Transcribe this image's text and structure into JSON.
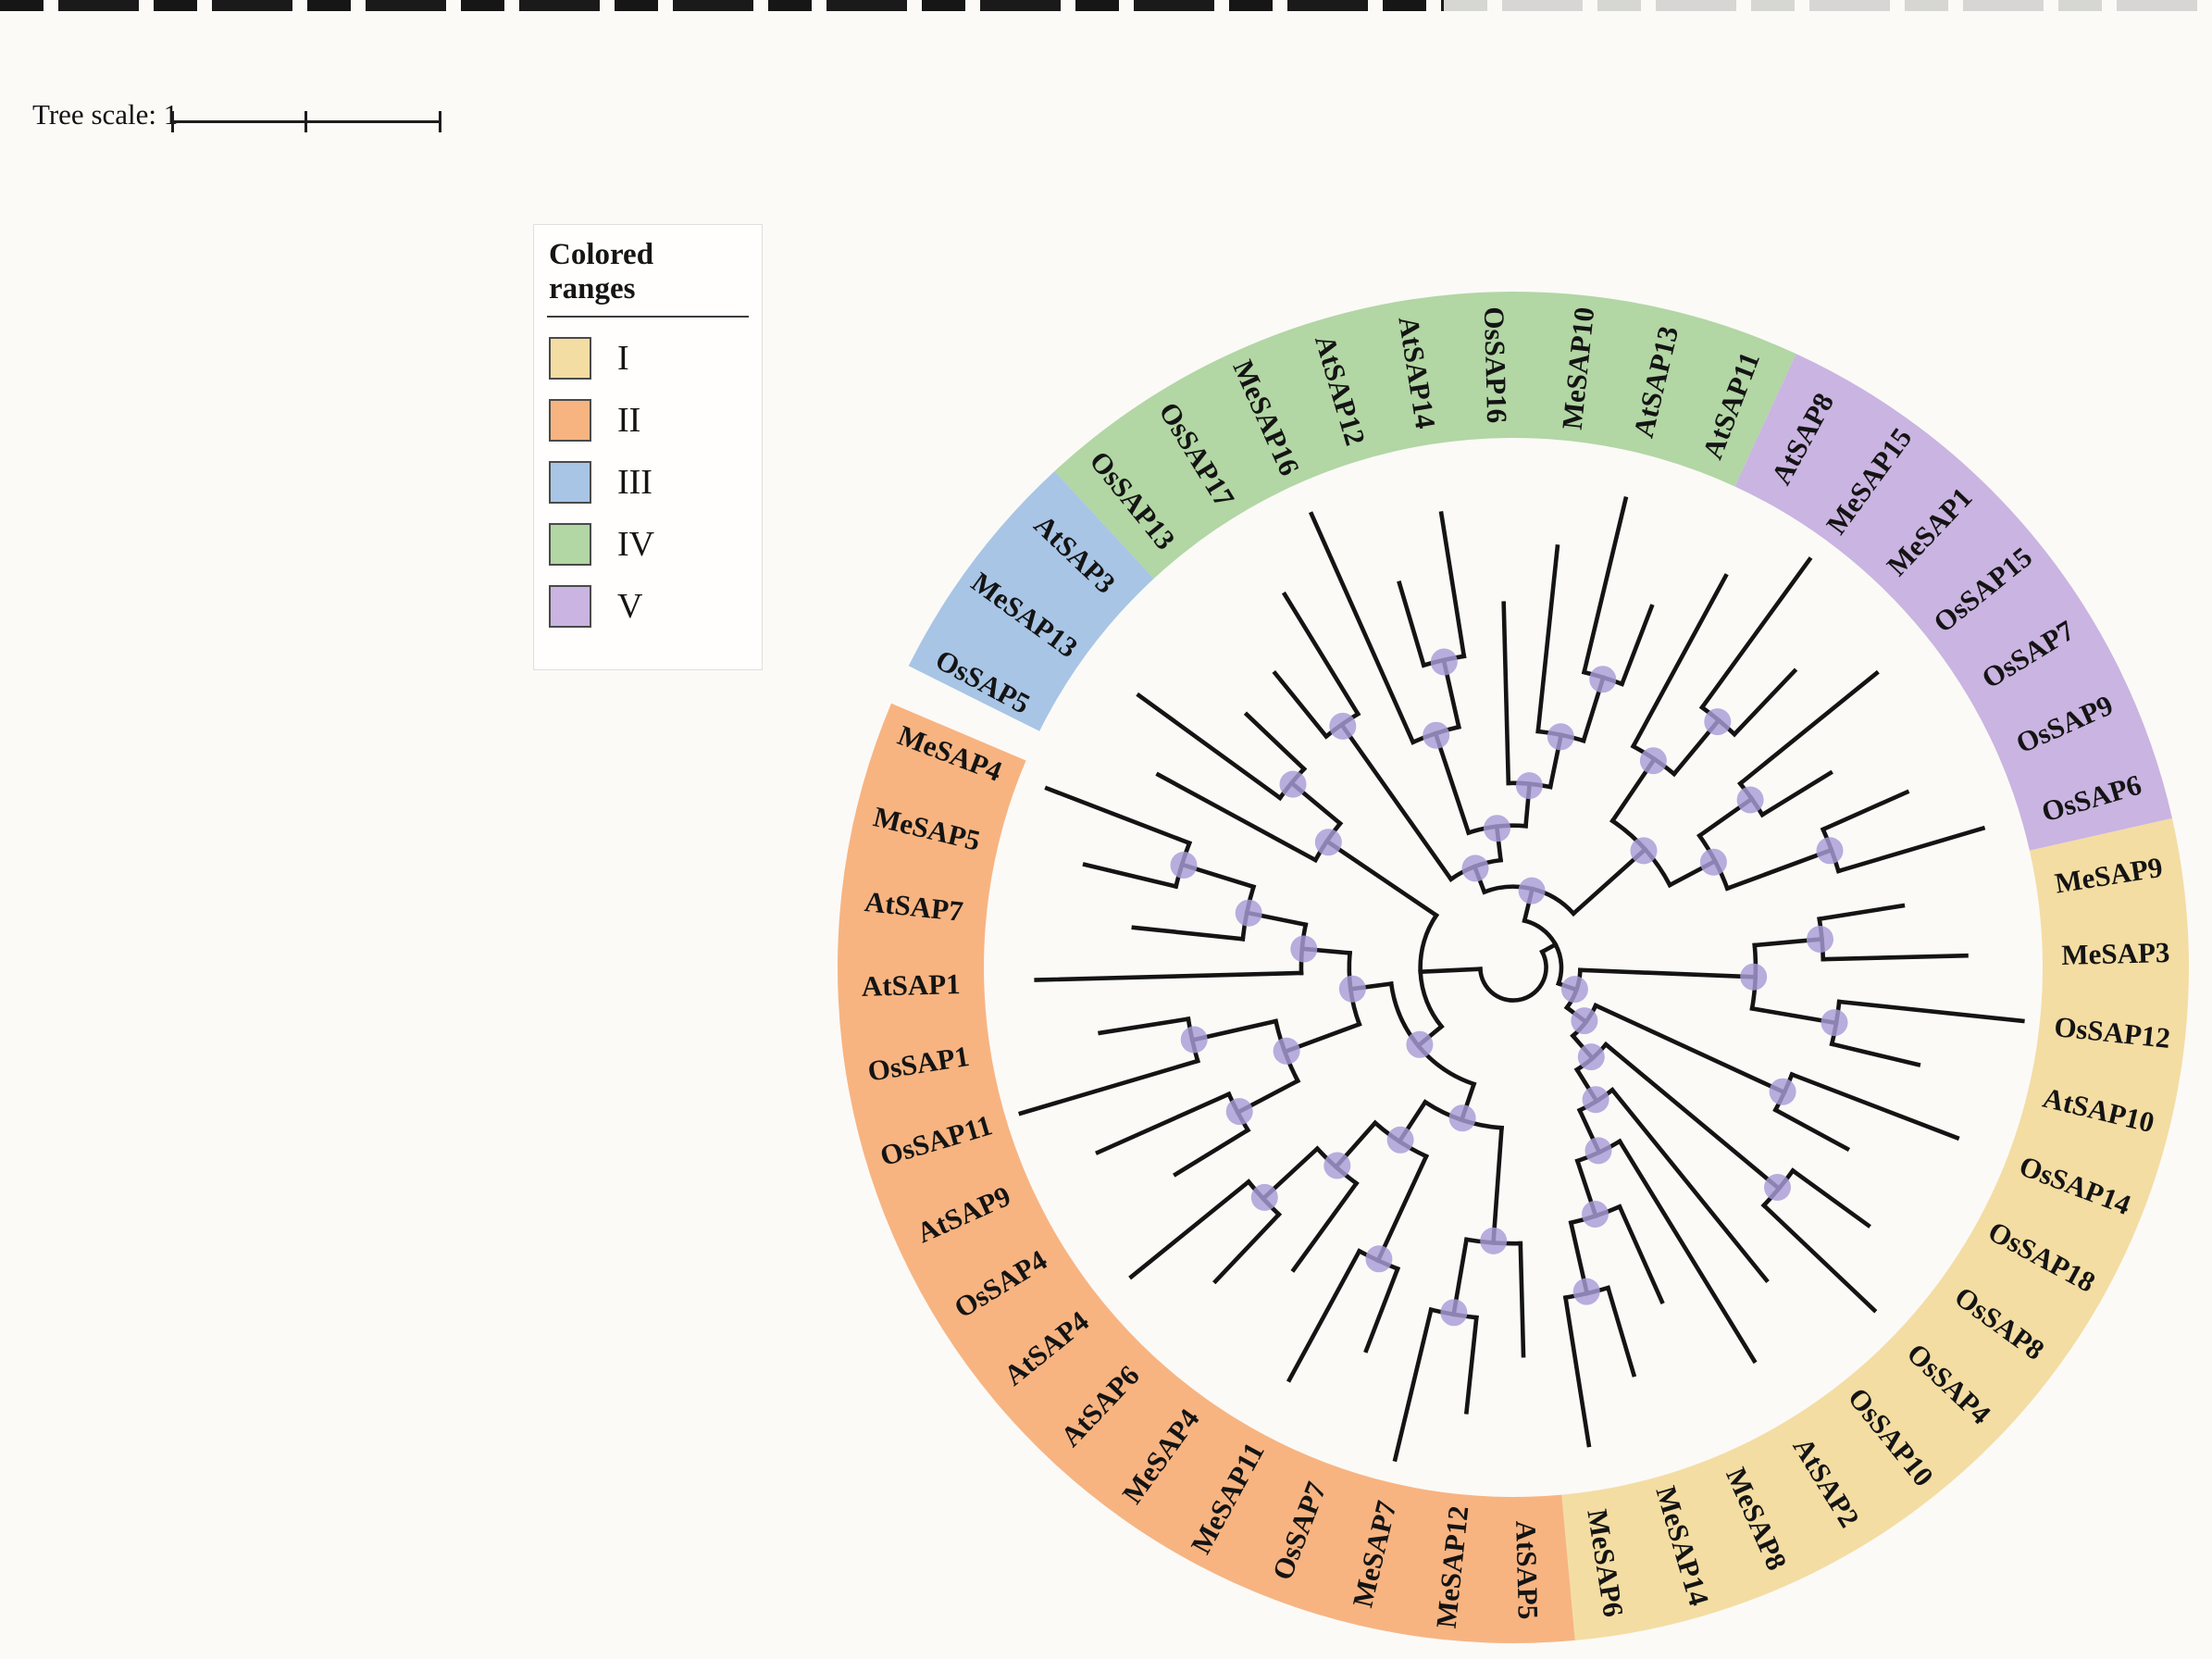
{
  "tree_scale": {
    "label": "Tree scale: 1",
    "value": 1
  },
  "legend": {
    "title": "Colored ranges",
    "items": [
      {
        "label": "I",
        "color": "#f4dda3"
      },
      {
        "label": "II",
        "color": "#f7b481"
      },
      {
        "label": "III",
        "color": "#a8c5e5"
      },
      {
        "label": "IV",
        "color": "#b2d6a4"
      },
      {
        "label": "V",
        "color": "#cab4e1"
      }
    ]
  },
  "chart_data": {
    "type": "circular-phylogenetic-tree",
    "legend_position": "upper-left",
    "branch_color": "#141414",
    "node_marker_color": "#a89cd7",
    "groups": [
      {
        "id": "I",
        "color": "#f4dda3"
      },
      {
        "id": "II",
        "color": "#f7b481"
      },
      {
        "id": "III",
        "color": "#a8c5e5"
      },
      {
        "id": "IV",
        "color": "#b2d6a4"
      },
      {
        "id": "V",
        "color": "#cab4e1"
      }
    ],
    "leaves": [
      {
        "name": "OsSAP13",
        "group": "IV"
      },
      {
        "name": "OsSAP17",
        "group": "IV"
      },
      {
        "name": "MeSAP16",
        "group": "IV"
      },
      {
        "name": "AtSAP12",
        "group": "IV"
      },
      {
        "name": "AtSAP14",
        "group": "IV"
      },
      {
        "name": "OsSAP16",
        "group": "IV"
      },
      {
        "name": "MeSAP10",
        "group": "IV"
      },
      {
        "name": "AtSAP13",
        "group": "IV"
      },
      {
        "name": "AtSAP11",
        "group": "IV"
      },
      {
        "name": "AtSAP8",
        "group": "V"
      },
      {
        "name": "MeSAP15",
        "group": "V"
      },
      {
        "name": "MeSAP1",
        "group": "V"
      },
      {
        "name": "OsSAP15",
        "group": "V"
      },
      {
        "name": "OsSAP7",
        "group": "V"
      },
      {
        "name": "OsSAP9",
        "group": "V"
      },
      {
        "name": "OsSAP6",
        "group": "V"
      },
      {
        "name": "MeSAP9",
        "group": "I"
      },
      {
        "name": "MeSAP3",
        "group": "I"
      },
      {
        "name": "OsSAP12",
        "group": "I"
      },
      {
        "name": "AtSAP10",
        "group": "I"
      },
      {
        "name": "OsSAP14",
        "group": "I"
      },
      {
        "name": "OsSAP18",
        "group": "I"
      },
      {
        "name": "OsSAP8",
        "group": "I"
      },
      {
        "name": "OsSAP4",
        "group": "I"
      },
      {
        "name": "OsSAP10",
        "group": "I"
      },
      {
        "name": "AtSAP2",
        "group": "I"
      },
      {
        "name": "MeSAP8",
        "group": "I"
      },
      {
        "name": "MeSAP14",
        "group": "I"
      },
      {
        "name": "MeSAP6",
        "group": "I"
      },
      {
        "name": "AtSAP5",
        "group": "II"
      },
      {
        "name": "MeSAP12",
        "group": "II"
      },
      {
        "name": "MeSAP7",
        "group": "II"
      },
      {
        "name": "OsSAP7",
        "group": "II"
      },
      {
        "name": "MeSAP11",
        "group": "II"
      },
      {
        "name": "MeSAP4",
        "group": "II"
      },
      {
        "name": "AtSAP6",
        "group": "II"
      },
      {
        "name": "AtSAP4",
        "group": "II"
      },
      {
        "name": "OsSAP4",
        "group": "II"
      },
      {
        "name": "AtSAP9",
        "group": "II"
      },
      {
        "name": "OsSAP11",
        "group": "II"
      },
      {
        "name": "OsSAP1",
        "group": "II"
      },
      {
        "name": "AtSAP1",
        "group": "II"
      },
      {
        "name": "AtSAP7",
        "group": "II"
      },
      {
        "name": "MeSAP5",
        "group": "II"
      },
      {
        "name": "MeSAP4",
        "group": "II"
      },
      {
        "name": "OsSAP5",
        "group": "III"
      },
      {
        "name": "MeSAP13",
        "group": "III"
      },
      {
        "name": "AtSAP3",
        "group": "III"
      }
    ],
    "topology": [
      [
        [
          [
            [
              0,
              1
            ],
            [
              [
                2,
                [
                  3,
                  4
                ]
              ],
              [
                5,
                [
                  6,
                  [
                    7,
                    8
                  ]
                ]
              ]
            ]
          ],
          [
            [
              9,
              [
                10,
                11
              ]
            ],
            [
              [
                12,
                13
              ],
              [
                14,
                15
              ]
            ]
          ]
        ],
        [
          [
            [
              16,
              17
            ],
            [
              18,
              19
            ]
          ],
          [
            [
              20,
              21
            ],
            [
              [
                22,
                23
              ],
              [
                24,
                [
                  25,
                  [
                    26,
                    [
                      27,
                      28
                    ]
                  ]
                ]
              ]
            ]
          ]
        ]
      ],
      [
        [
          [
            [
              29,
              [
                30,
                31
              ]
            ],
            [
              [
                32,
                33
              ],
              [
                34,
                [
                  35,
                  36
                ]
              ]
            ]
          ],
          [
            [
              [
                37,
                38
              ],
              [
                39,
                40
              ]
            ],
            [
              41,
              [
                42,
                [
                  43,
                  44
                ]
              ]
            ]
          ]
        ],
        [
          45,
          [
            46,
            47
          ]
        ]
      ]
    ]
  }
}
